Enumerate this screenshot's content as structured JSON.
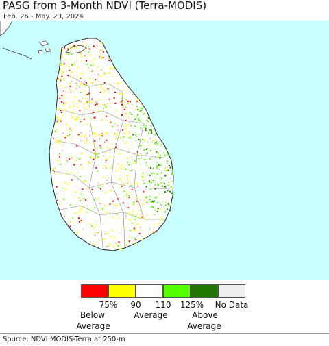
{
  "title": "PASG from 3-Month NDVI (Terra-MODIS)",
  "subtitle": "Feb. 26 - May. 23, 2024",
  "colors": {
    "ocean": "#c8ffff",
    "land": "#ffffff",
    "border": "#777777"
  },
  "legend": {
    "classes": [
      {
        "name": "below-75",
        "color": "#ff0000"
      },
      {
        "name": "75-90",
        "color": "#ffff00"
      },
      {
        "name": "90-110",
        "color": "#ffffff"
      },
      {
        "name": "110-125",
        "color": "#55ff00"
      },
      {
        "name": "above-125",
        "color": "#227700"
      },
      {
        "name": "no-data",
        "color": "#eeeeee"
      }
    ],
    "tick_75": "75%",
    "tick_90": "90",
    "tick_110": "110",
    "tick_125": "125%",
    "no_data": "No Data",
    "below_line1": "Below",
    "below_line2": "Average",
    "average": "Average",
    "above_line1": "Above",
    "above_line2": "Average"
  },
  "source": "Source: NDVI MODIS-Terra at 250-m"
}
